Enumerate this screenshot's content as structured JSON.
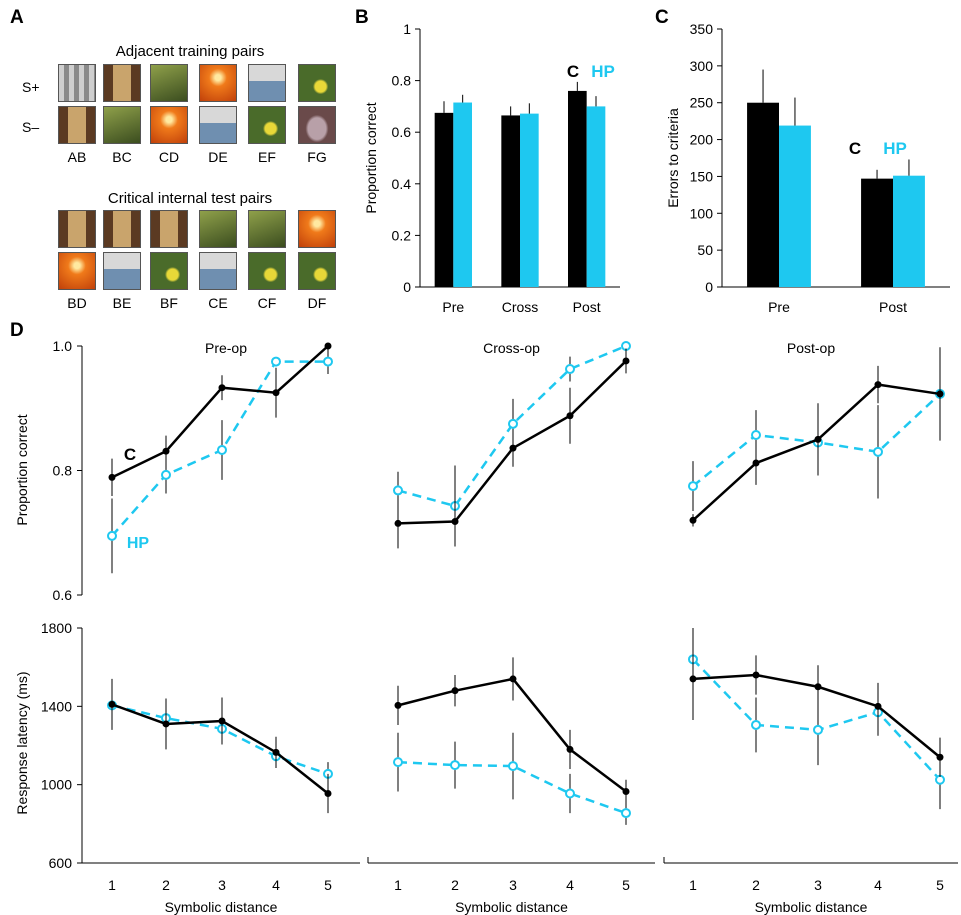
{
  "panel_labels": {
    "a": "A",
    "b": "B",
    "c": "C",
    "d": "D"
  },
  "panel_a": {
    "training_title": "Adjacent training pairs",
    "splus_label": "S+",
    "sminus_label": "S–",
    "training_pairs": [
      "AB",
      "BC",
      "CD",
      "DE",
      "EF",
      "FG"
    ],
    "test_title": "Critical internal test pairs",
    "test_pairs": [
      "BD",
      "BE",
      "BF",
      "CE",
      "CF",
      "DF"
    ],
    "stimuli": {
      "A": {
        "kind": "screenshot",
        "colors": [
          "#8a8a8a",
          "#cfcfcf"
        ]
      },
      "B": {
        "kind": "interior",
        "colors": [
          "#5b3a22",
          "#c9a46c"
        ]
      },
      "C": {
        "kind": "foliage",
        "colors": [
          "#3b4d1f",
          "#8fa04a"
        ]
      },
      "D": {
        "kind": "sunset",
        "colors": [
          "#f07a1a",
          "#c0400a"
        ]
      },
      "E": {
        "kind": "street",
        "colors": [
          "#6f8fb0",
          "#d8d8d8"
        ]
      },
      "F": {
        "kind": "bird",
        "colors": [
          "#4a6b2a",
          "#e8d838"
        ]
      },
      "G": {
        "kind": "statue",
        "colors": [
          "#6a4a4a",
          "#b8a0a8"
        ]
      }
    }
  },
  "chart_data": [
    {
      "type": "bar",
      "id": "B",
      "categories": [
        "Pre",
        "Cross",
        "Post"
      ],
      "series": [
        {
          "name": "C",
          "color": "#000000",
          "values": [
            0.675,
            0.665,
            0.76
          ],
          "errors": [
            0.045,
            0.035,
            0.035
          ]
        },
        {
          "name": "HP",
          "color": "#1ec8f0",
          "values": [
            0.715,
            0.672,
            0.7
          ],
          "errors": [
            0.03,
            0.04,
            0.04
          ]
        }
      ],
      "title": "",
      "xlabel": "",
      "ylabel": "Proportion correct",
      "ylim": [
        0,
        1
      ],
      "yticks": [
        "0",
        "0.2",
        "0.4",
        "0.6",
        "0.8",
        "1"
      ],
      "legend_labels": {
        "c": "C",
        "hp": "HP"
      },
      "legend_placement": "above Post bars"
    },
    {
      "type": "bar",
      "id": "C",
      "categories": [
        "Pre",
        "Post"
      ],
      "series": [
        {
          "name": "C",
          "color": "#000000",
          "values": [
            250,
            147
          ],
          "errors": [
            45,
            12
          ]
        },
        {
          "name": "HP",
          "color": "#1ec8f0",
          "values": [
            219,
            151
          ],
          "errors": [
            38,
            22
          ]
        }
      ],
      "title": "",
      "xlabel": "",
      "ylabel": "Errors to criteria",
      "ylim": [
        0,
        350
      ],
      "yticks": [
        "0",
        "50",
        "100",
        "150",
        "200",
        "250",
        "300",
        "350"
      ],
      "legend_labels": {
        "c": "C",
        "hp": "HP"
      },
      "legend_placement": "above Post bars"
    },
    {
      "type": "line",
      "id": "D-accuracy",
      "x": [
        1,
        2,
        3,
        4,
        5
      ],
      "ylabel": "Proportion correct",
      "ylim": [
        0.6,
        1.0
      ],
      "yticks": [
        "0.6",
        "0.8",
        "1.0"
      ],
      "panels": [
        {
          "title": "Pre-op",
          "series": [
            {
              "name": "C",
              "color": "#000000",
              "style": "solid",
              "values": [
                0.789,
                0.831,
                0.933,
                0.925,
                1.0
              ],
              "errors": [
                0.03,
                0.025,
                0.02,
                0.04,
                0.0
              ]
            },
            {
              "name": "HP",
              "color": "#1ec8f0",
              "style": "dashed",
              "values": [
                0.695,
                0.793,
                0.833,
                0.975,
                0.975
              ],
              "errors": [
                0.06,
                0.03,
                0.048,
                0.0,
                0.02
              ]
            }
          ],
          "labels": {
            "c": "C",
            "hp": "HP"
          }
        },
        {
          "title": "Cross-op",
          "series": [
            {
              "name": "C",
              "color": "#000000",
              "style": "solid",
              "values": [
                0.715,
                0.718,
                0.836,
                0.888,
                0.976
              ],
              "errors": [
                0.04,
                0.04,
                0.03,
                0.045,
                0.02
              ]
            },
            {
              "name": "HP",
              "color": "#1ec8f0",
              "style": "dashed",
              "values": [
                0.768,
                0.743,
                0.875,
                0.963,
                1.0
              ],
              "errors": [
                0.03,
                0.065,
                0.04,
                0.02,
                0.0
              ]
            }
          ]
        },
        {
          "title": "Post-op",
          "series": [
            {
              "name": "C",
              "color": "#000000",
              "style": "solid",
              "values": [
                0.72,
                0.812,
                0.85,
                0.938,
                0.923
              ],
              "errors": [
                0.01,
                0.035,
                0.058,
                0.03,
                0.075
              ]
            },
            {
              "name": "HP",
              "color": "#1ec8f0",
              "style": "dashed",
              "values": [
                0.775,
                0.857,
                0.845,
                0.83,
                0.923
              ],
              "errors": [
                0.04,
                0.04,
                0.04,
                0.075,
                0.0
              ]
            }
          ]
        }
      ]
    },
    {
      "type": "line",
      "id": "D-latency",
      "x": [
        1,
        2,
        3,
        4,
        5
      ],
      "xlabel": "Symbolic distance",
      "xticks": [
        "1",
        "2",
        "3",
        "4",
        "5"
      ],
      "ylabel": "Response latency (ms)",
      "ylim": [
        600,
        1800
      ],
      "yticks": [
        "600",
        "1000",
        "1400",
        "1800"
      ],
      "panels": [
        {
          "series": [
            {
              "name": "C",
              "color": "#000000",
              "style": "solid",
              "values": [
                1410,
                1310,
                1325,
                1165,
                955
              ],
              "errors": [
                130,
                130,
                120,
                80,
                100
              ]
            },
            {
              "name": "HP",
              "color": "#1ec8f0",
              "style": "dashed",
              "values": [
                1405,
                1340,
                1285,
                1145,
                1055
              ],
              "errors": [
                90,
                90,
                80,
                60,
                60
              ]
            }
          ]
        },
        {
          "series": [
            {
              "name": "C",
              "color": "#000000",
              "style": "solid",
              "values": [
                1405,
                1480,
                1540,
                1180,
                965
              ],
              "errors": [
                100,
                80,
                110,
                100,
                60
              ]
            },
            {
              "name": "HP",
              "color": "#1ec8f0",
              "style": "dashed",
              "values": [
                1115,
                1100,
                1095,
                955,
                855
              ],
              "errors": [
                150,
                120,
                170,
                100,
                60
              ]
            }
          ]
        },
        {
          "series": [
            {
              "name": "C",
              "color": "#000000",
              "style": "solid",
              "values": [
                1540,
                1560,
                1500,
                1400,
                1140
              ],
              "errors": [
                210,
                100,
                110,
                120,
                100
              ]
            },
            {
              "name": "HP",
              "color": "#1ec8f0",
              "style": "dashed",
              "values": [
                1640,
                1305,
                1280,
                1370,
                1025
              ],
              "errors": [
                160,
                140,
                180,
                120,
                150
              ]
            }
          ]
        }
      ]
    }
  ]
}
